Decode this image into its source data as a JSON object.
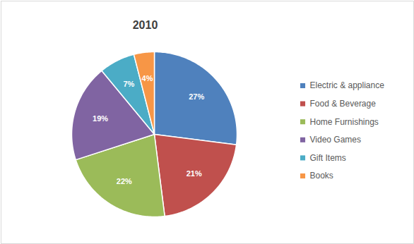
{
  "chart_data": {
    "type": "pie",
    "title": "2010",
    "categories": [
      "Electric & appliance",
      "Food & Beverage",
      "Home Furnishings",
      "Video Games",
      "Gift Items",
      "Books"
    ],
    "values": [
      27,
      21,
      22,
      19,
      7,
      4
    ],
    "value_labels": [
      "27%",
      "21%",
      "22%",
      "19%",
      "7%",
      "4%"
    ],
    "colors": [
      "#4f81bd",
      "#c0504d",
      "#9bbb59",
      "#8064a2",
      "#4bacc6",
      "#f79646"
    ],
    "data_labels": true,
    "legend": "right"
  }
}
